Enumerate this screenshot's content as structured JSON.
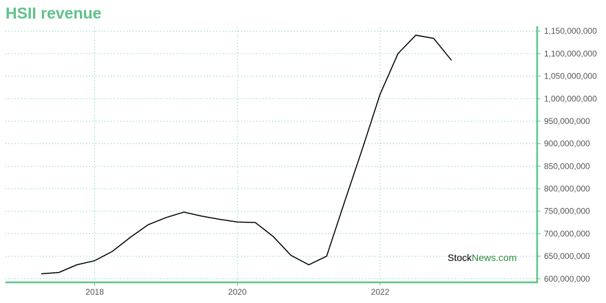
{
  "page_title": "HSII revenue",
  "colors": {
    "title": "#5ec38a",
    "axis": "#5ec38a",
    "grid": "#8fd3c0",
    "line": "#000000",
    "watermark_main": "#000000",
    "watermark_accent": "#2e8b3e"
  },
  "watermark": {
    "part1": "Stock",
    "part2": "News",
    "part3": ".com"
  },
  "chart_data": {
    "type": "line",
    "title": "HSII revenue",
    "xlabel": "",
    "ylabel": "",
    "x_axis": "time (year)",
    "x_ticks": [
      2018,
      2020,
      2022
    ],
    "y_ticks": [
      600000000,
      650000000,
      700000000,
      750000000,
      800000000,
      850000000,
      900000000,
      950000000,
      1000000000,
      1050000000,
      1100000000,
      1150000000
    ],
    "y_tick_labels": [
      "600,000,000",
      "650,000,000",
      "700,000,000",
      "750,000,000",
      "800,000,000",
      "850,000,000",
      "900,000,000",
      "950,000,000",
      "1,000,000,000",
      "1,050,000,000",
      "1,100,000,000",
      "1,150,000,000"
    ],
    "ylim": [
      592000000,
      1158000000
    ],
    "xlim": [
      2016.75,
      2024.2
    ],
    "y_axis_position": "right",
    "grid": true,
    "series": [
      {
        "x": [
          2017.25,
          2017.5,
          2017.75,
          2018.0,
          2018.25,
          2018.5,
          2018.75,
          2019.0,
          2019.25,
          2019.5,
          2019.75,
          2020.0,
          2020.25,
          2020.5,
          2020.75,
          2021.0,
          2021.25,
          2021.5,
          2021.75,
          2022.0,
          2022.25,
          2022.5,
          2022.75,
          2023.0
        ],
        "values": [
          611000000,
          614000000,
          631000000,
          640000000,
          661000000,
          692000000,
          720000000,
          736000000,
          748000000,
          739000000,
          732000000,
          726000000,
          725000000,
          694000000,
          652000000,
          631000000,
          650000000,
          770000000,
          888000000,
          1010000000,
          1100000000,
          1141000000,
          1134000000,
          1085000000
        ]
      }
    ]
  }
}
